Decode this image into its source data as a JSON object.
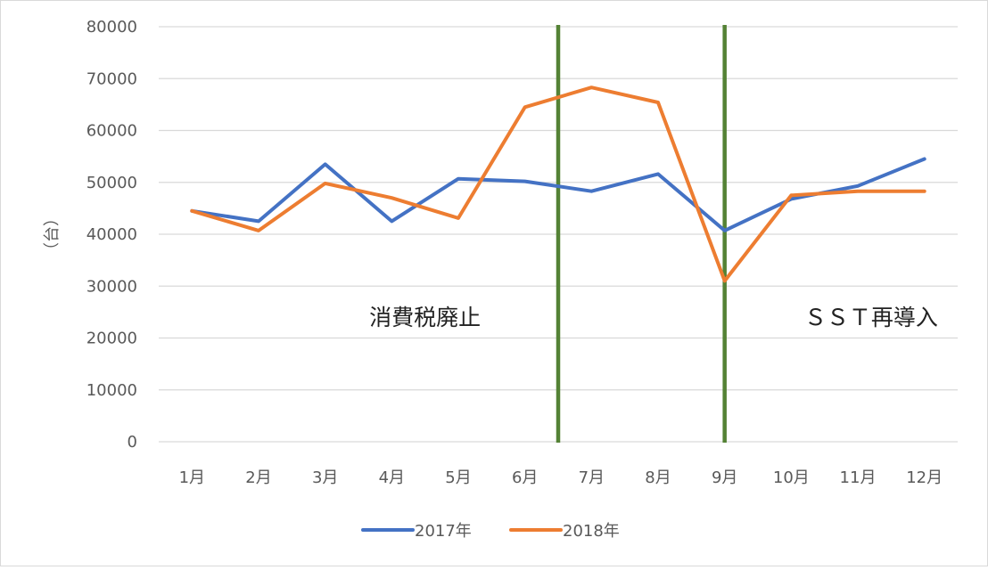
{
  "chart_data": {
    "type": "line",
    "title": "",
    "xlabel": "",
    "ylabel": "（台）",
    "categories": [
      "1月",
      "2月",
      "3月",
      "4月",
      "5月",
      "6月",
      "7月",
      "8月",
      "9月",
      "10月",
      "11月",
      "12月"
    ],
    "ylim": [
      0,
      80000
    ],
    "yticks": [
      0,
      10000,
      20000,
      30000,
      40000,
      50000,
      60000,
      70000,
      80000
    ],
    "grid": true,
    "legend_position": "bottom",
    "series": [
      {
        "name": "2017年",
        "color": "#4472c4",
        "values": [
          44500,
          42500,
          53500,
          42500,
          50700,
          50200,
          48300,
          51600,
          40700,
          46800,
          49300,
          54500
        ]
      },
      {
        "name": "2018年",
        "color": "#ed7d31",
        "values": [
          44500,
          40700,
          49800,
          47000,
          43100,
          64500,
          68300,
          65400,
          31000,
          47500,
          48300,
          48300
        ]
      }
    ],
    "vlines": [
      {
        "x": 5.5,
        "color": "#548235"
      },
      {
        "x": 8.0,
        "color": "#548235"
      }
    ],
    "annotations": [
      {
        "text": "消費税廃止",
        "x": 3.5,
        "y": 24000
      },
      {
        "text": "ＳＳＴ再導入",
        "x": 10.2,
        "y": 24000
      }
    ]
  }
}
